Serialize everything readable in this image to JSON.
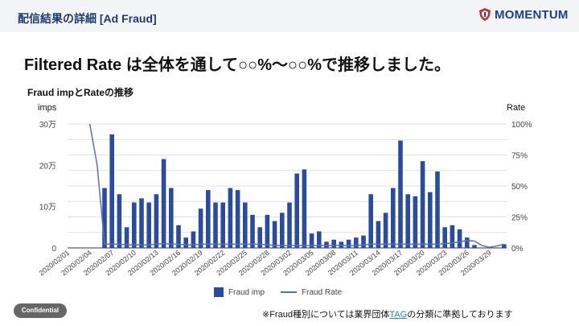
{
  "header": {
    "title": "配信結果の詳細 [Ad Fraud]",
    "logo_text": "MOMENTUM"
  },
  "headline": "Filtered Rate は全体を通して○○%〜○○%で推移しました。",
  "footer": {
    "confidential": "Confidential",
    "note_prefix": "※Fraud種別については業界団体",
    "note_link": "TAG",
    "note_suffix": "の分類に準拠しております"
  },
  "colors": {
    "bar": "#2b4c9b",
    "line": "#5572b5",
    "title": "#1f3a6b"
  },
  "chart_data": {
    "type": "bar+line",
    "title": "Fraud impとRateの推移",
    "ylabel_left": "imps",
    "ylabel_right": "Rate",
    "ylim_left": [
      0,
      300000
    ],
    "ylim_right": [
      0,
      100
    ],
    "yticks_left": [
      "0",
      "10万",
      "20万",
      "30万"
    ],
    "yticks_right": [
      "0%",
      "25%",
      "50%",
      "75%",
      "100%"
    ],
    "grid": true,
    "legend": "bottom",
    "x_start": "2020/02/01",
    "xtick_labels": [
      "2020/02/01",
      "2020/02/04",
      "2020/02/07",
      "2020/02/10",
      "2020/02/13",
      "2020/02/16",
      "2020/02/19",
      "2020/02/22",
      "2020/02/25",
      "2020/02/28",
      "2020/03/02",
      "2020/03/05",
      "2020/03/08",
      "2020/03/11",
      "2020/03/14",
      "2020/03/17",
      "2020/03/20",
      "2020/03/23",
      "2020/03/26",
      "2020/03/29"
    ],
    "series": [
      {
        "name": "Fraud imp",
        "type": "bar",
        "unit": "万",
        "values": [
          null,
          null,
          null,
          0,
          0,
          14.5,
          27.5,
          13,
          5,
          11,
          12,
          11,
          13,
          21.5,
          14.5,
          5.5,
          2.5,
          4,
          9.5,
          14,
          11,
          11,
          14.5,
          14,
          11,
          8,
          5,
          8,
          6.5,
          8.5,
          11,
          18,
          19,
          3.5,
          4,
          1.5,
          2,
          1.5,
          2,
          2.5,
          3,
          13,
          6.5,
          8.5,
          14.5,
          26,
          13,
          12.5,
          21,
          13.5,
          18.5,
          5,
          5.5,
          4.5,
          2.5,
          0.7,
          0,
          0,
          0,
          0.9
        ]
      },
      {
        "name": "Fraud Rate",
        "type": "line",
        "unit": "%",
        "values": [
          null,
          null,
          null,
          100,
          67,
          3,
          3,
          3,
          2.5,
          2.5,
          2.5,
          2.5,
          3,
          3.5,
          3,
          3,
          2.5,
          2.5,
          3,
          3,
          3,
          3,
          3,
          3,
          3,
          3,
          3,
          2.5,
          2,
          2,
          2,
          2,
          2,
          2,
          2,
          2,
          2,
          2,
          2,
          2,
          2.5,
          3,
          3,
          3,
          3,
          3,
          3,
          3,
          3,
          3,
          3,
          3.5,
          4,
          5,
          6,
          5.5,
          2,
          0.5,
          1.5,
          3
        ]
      }
    ]
  }
}
